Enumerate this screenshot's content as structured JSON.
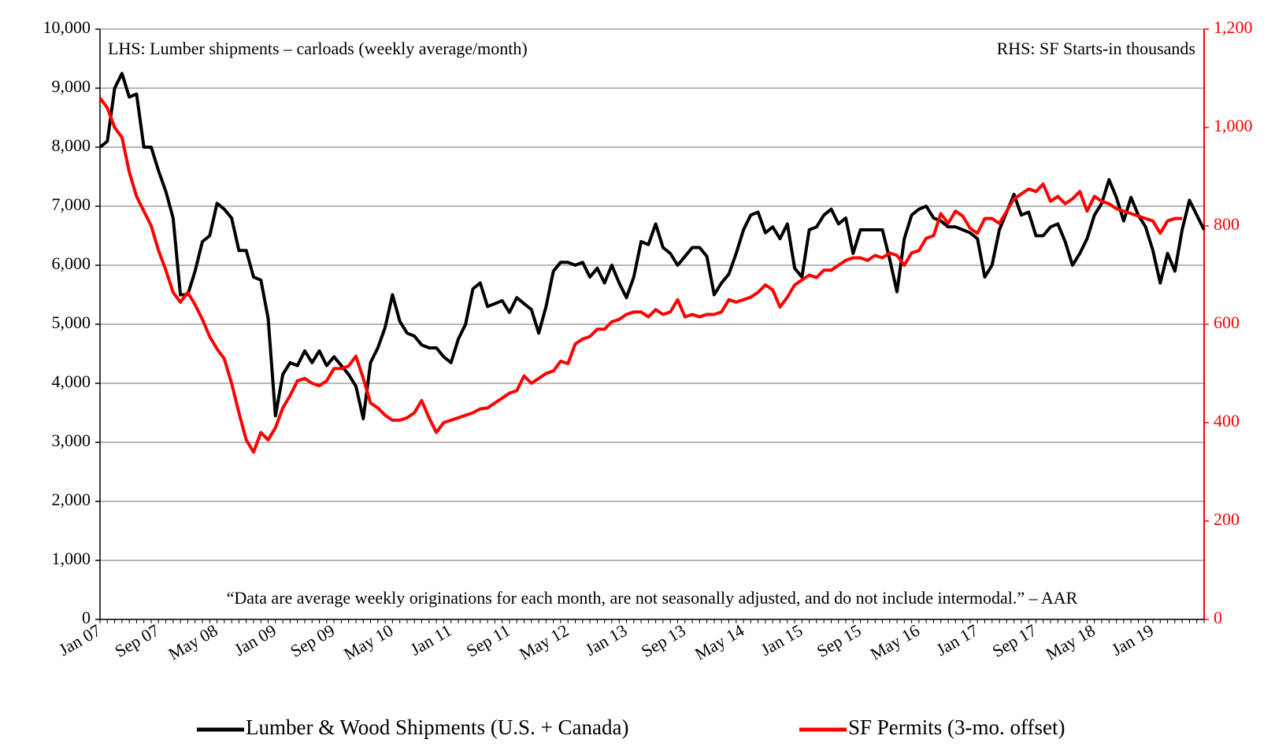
{
  "chart_data": {
    "type": "line",
    "annotations": [
      "LHS: Lumber shipments – carloads (weekly  average/month)",
      "RHS: SF Starts-in thousands",
      "“Data are average weekly originations for each month, are not seasonally adjusted, and do not include intermodal.” –  AAR"
    ],
    "categories": [
      "Jan 07",
      null,
      null,
      null,
      null,
      null,
      null,
      null,
      "Sep 07",
      null,
      null,
      null,
      null,
      null,
      null,
      null,
      "May 08",
      null,
      null,
      null,
      null,
      null,
      null,
      null,
      "Jan 09",
      null,
      null,
      null,
      null,
      null,
      null,
      null,
      "Sep 09",
      null,
      null,
      null,
      null,
      null,
      null,
      null,
      "May 10",
      null,
      null,
      null,
      null,
      null,
      null,
      null,
      "Jan 11",
      null,
      null,
      null,
      null,
      null,
      null,
      null,
      "Sep 11",
      null,
      null,
      null,
      null,
      null,
      null,
      null,
      "May 12",
      null,
      null,
      null,
      null,
      null,
      null,
      null,
      "Jan 13",
      null,
      null,
      null,
      null,
      null,
      null,
      null,
      "Sep 13",
      null,
      null,
      null,
      null,
      null,
      null,
      null,
      "May 14",
      null,
      null,
      null,
      null,
      null,
      null,
      null,
      "Jan 15",
      null,
      null,
      null,
      null,
      null,
      null,
      null,
      "Sep 15",
      null,
      null,
      null,
      null,
      null,
      null,
      null,
      "May 16",
      null,
      null,
      null,
      null,
      null,
      null,
      null,
      "Jan 17",
      null,
      null,
      null,
      null,
      null,
      null,
      null,
      "Sep 17",
      null,
      null,
      null,
      null,
      null,
      null,
      null,
      "May 18",
      null,
      null,
      null,
      null,
      null,
      null,
      null,
      "Jan 19",
      null,
      null,
      null,
      null,
      null,
      null,
      null
    ],
    "series": [
      {
        "name": "Lumber & Wood Shipments (U.S. + Canada)",
        "color": "#000000",
        "values": [
          8000,
          8100,
          9000,
          9250,
          8850,
          8900,
          8000,
          8000,
          7600,
          7250,
          6800,
          5500,
          5500,
          5900,
          6400,
          6500,
          7050,
          6950,
          6800,
          6250,
          6250,
          5800,
          5750,
          5100,
          3450,
          4150,
          4350,
          4300,
          4550,
          4350,
          4550,
          4300,
          4450,
          4300,
          4150,
          3950,
          3400,
          4350,
          4600,
          4950,
          5500,
          5050,
          4850,
          4800,
          4650,
          4600,
          4600,
          4450,
          4350,
          4750,
          5000,
          5600,
          5700,
          5300,
          5350,
          5400,
          5200,
          5450,
          5350,
          5250,
          4850,
          5300,
          5900,
          6050,
          6050,
          6000,
          6050,
          5800,
          5950,
          5700,
          6000,
          5700,
          5450,
          5800,
          6400,
          6350,
          6700,
          6300,
          6200,
          6000,
          6150,
          6300,
          6300,
          6150,
          5500,
          5700,
          5850,
          6200,
          6600,
          6850,
          6900,
          6550,
          6650,
          6450,
          6700,
          5950,
          5800,
          6600,
          6650,
          6850,
          6950,
          6700,
          6800,
          6200,
          6600,
          6600,
          6600,
          6600,
          6100,
          5550,
          6450,
          6850,
          6950,
          7000,
          6800,
          6750,
          6650,
          6650,
          6600,
          6550,
          6450,
          5800,
          6000,
          6600,
          6900,
          7200,
          6850,
          6900,
          6500,
          6500,
          6650,
          6700,
          6400,
          6000,
          6200,
          6450,
          6850,
          7050,
          7450,
          7150,
          6750,
          7150,
          6850,
          6650,
          6250,
          5700,
          6200,
          5900,
          6600,
          7100,
          6850,
          6600
        ]
      },
      {
        "name": "SF Permits (3-mo. offset)",
        "color": "#ff0000",
        "axis": "y2",
        "values": [
          1060,
          1040,
          1000,
          980,
          910,
          860,
          830,
          800,
          750,
          710,
          665,
          645,
          665,
          640,
          610,
          575,
          550,
          530,
          480,
          420,
          365,
          340,
          380,
          365,
          390,
          430,
          455,
          485,
          490,
          480,
          475,
          485,
          510,
          510,
          515,
          535,
          490,
          440,
          430,
          415,
          405,
          405,
          410,
          420,
          445,
          410,
          380,
          400,
          405,
          410,
          415,
          420,
          428,
          430,
          440,
          450,
          460,
          465,
          495,
          480,
          490,
          500,
          505,
          525,
          520,
          560,
          570,
          575,
          590,
          590,
          605,
          610,
          620,
          625,
          625,
          615,
          630,
          620,
          625,
          650,
          615,
          620,
          615,
          620,
          620,
          625,
          650,
          645,
          650,
          655,
          665,
          680,
          670,
          635,
          655,
          680,
          690,
          700,
          695,
          710,
          710,
          720,
          730,
          735,
          735,
          730,
          740,
          735,
          745,
          740,
          720,
          745,
          750,
          775,
          780,
          825,
          805,
          830,
          820,
          795,
          785,
          815,
          815,
          805,
          830,
          855,
          865,
          875,
          870,
          885,
          850,
          860,
          845,
          855,
          870,
          830,
          860,
          850,
          845,
          835,
          830,
          825,
          820,
          815,
          810,
          785,
          810,
          815,
          815,
          null,
          null,
          null
        ]
      }
    ],
    "ylim": [
      0,
      10000
    ],
    "yticks": [
      0,
      {
        "value": 1000,
        "label": "1,000"
      },
      {
        "value": 2000,
        "label": "2,000"
      },
      {
        "value": 3000,
        "label": "3,000"
      },
      {
        "value": 4000,
        "label": "4,000"
      },
      {
        "value": 5000,
        "label": "5,000"
      },
      {
        "value": 6000,
        "label": "6,000"
      },
      {
        "value": 7000,
        "label": "7,000"
      },
      {
        "value": 8000,
        "label": "8,000"
      },
      {
        "value": 9000,
        "label": "9,000"
      },
      {
        "value": 10000,
        "label": "10,000"
      }
    ],
    "y2lim": [
      0,
      1200
    ],
    "y2ticks": [
      0,
      200,
      400,
      600,
      800,
      {
        "value": 1000,
        "label": "1,000"
      },
      {
        "value": 1200,
        "label": "1,200"
      }
    ],
    "grid": true,
    "legend": "bottom"
  }
}
